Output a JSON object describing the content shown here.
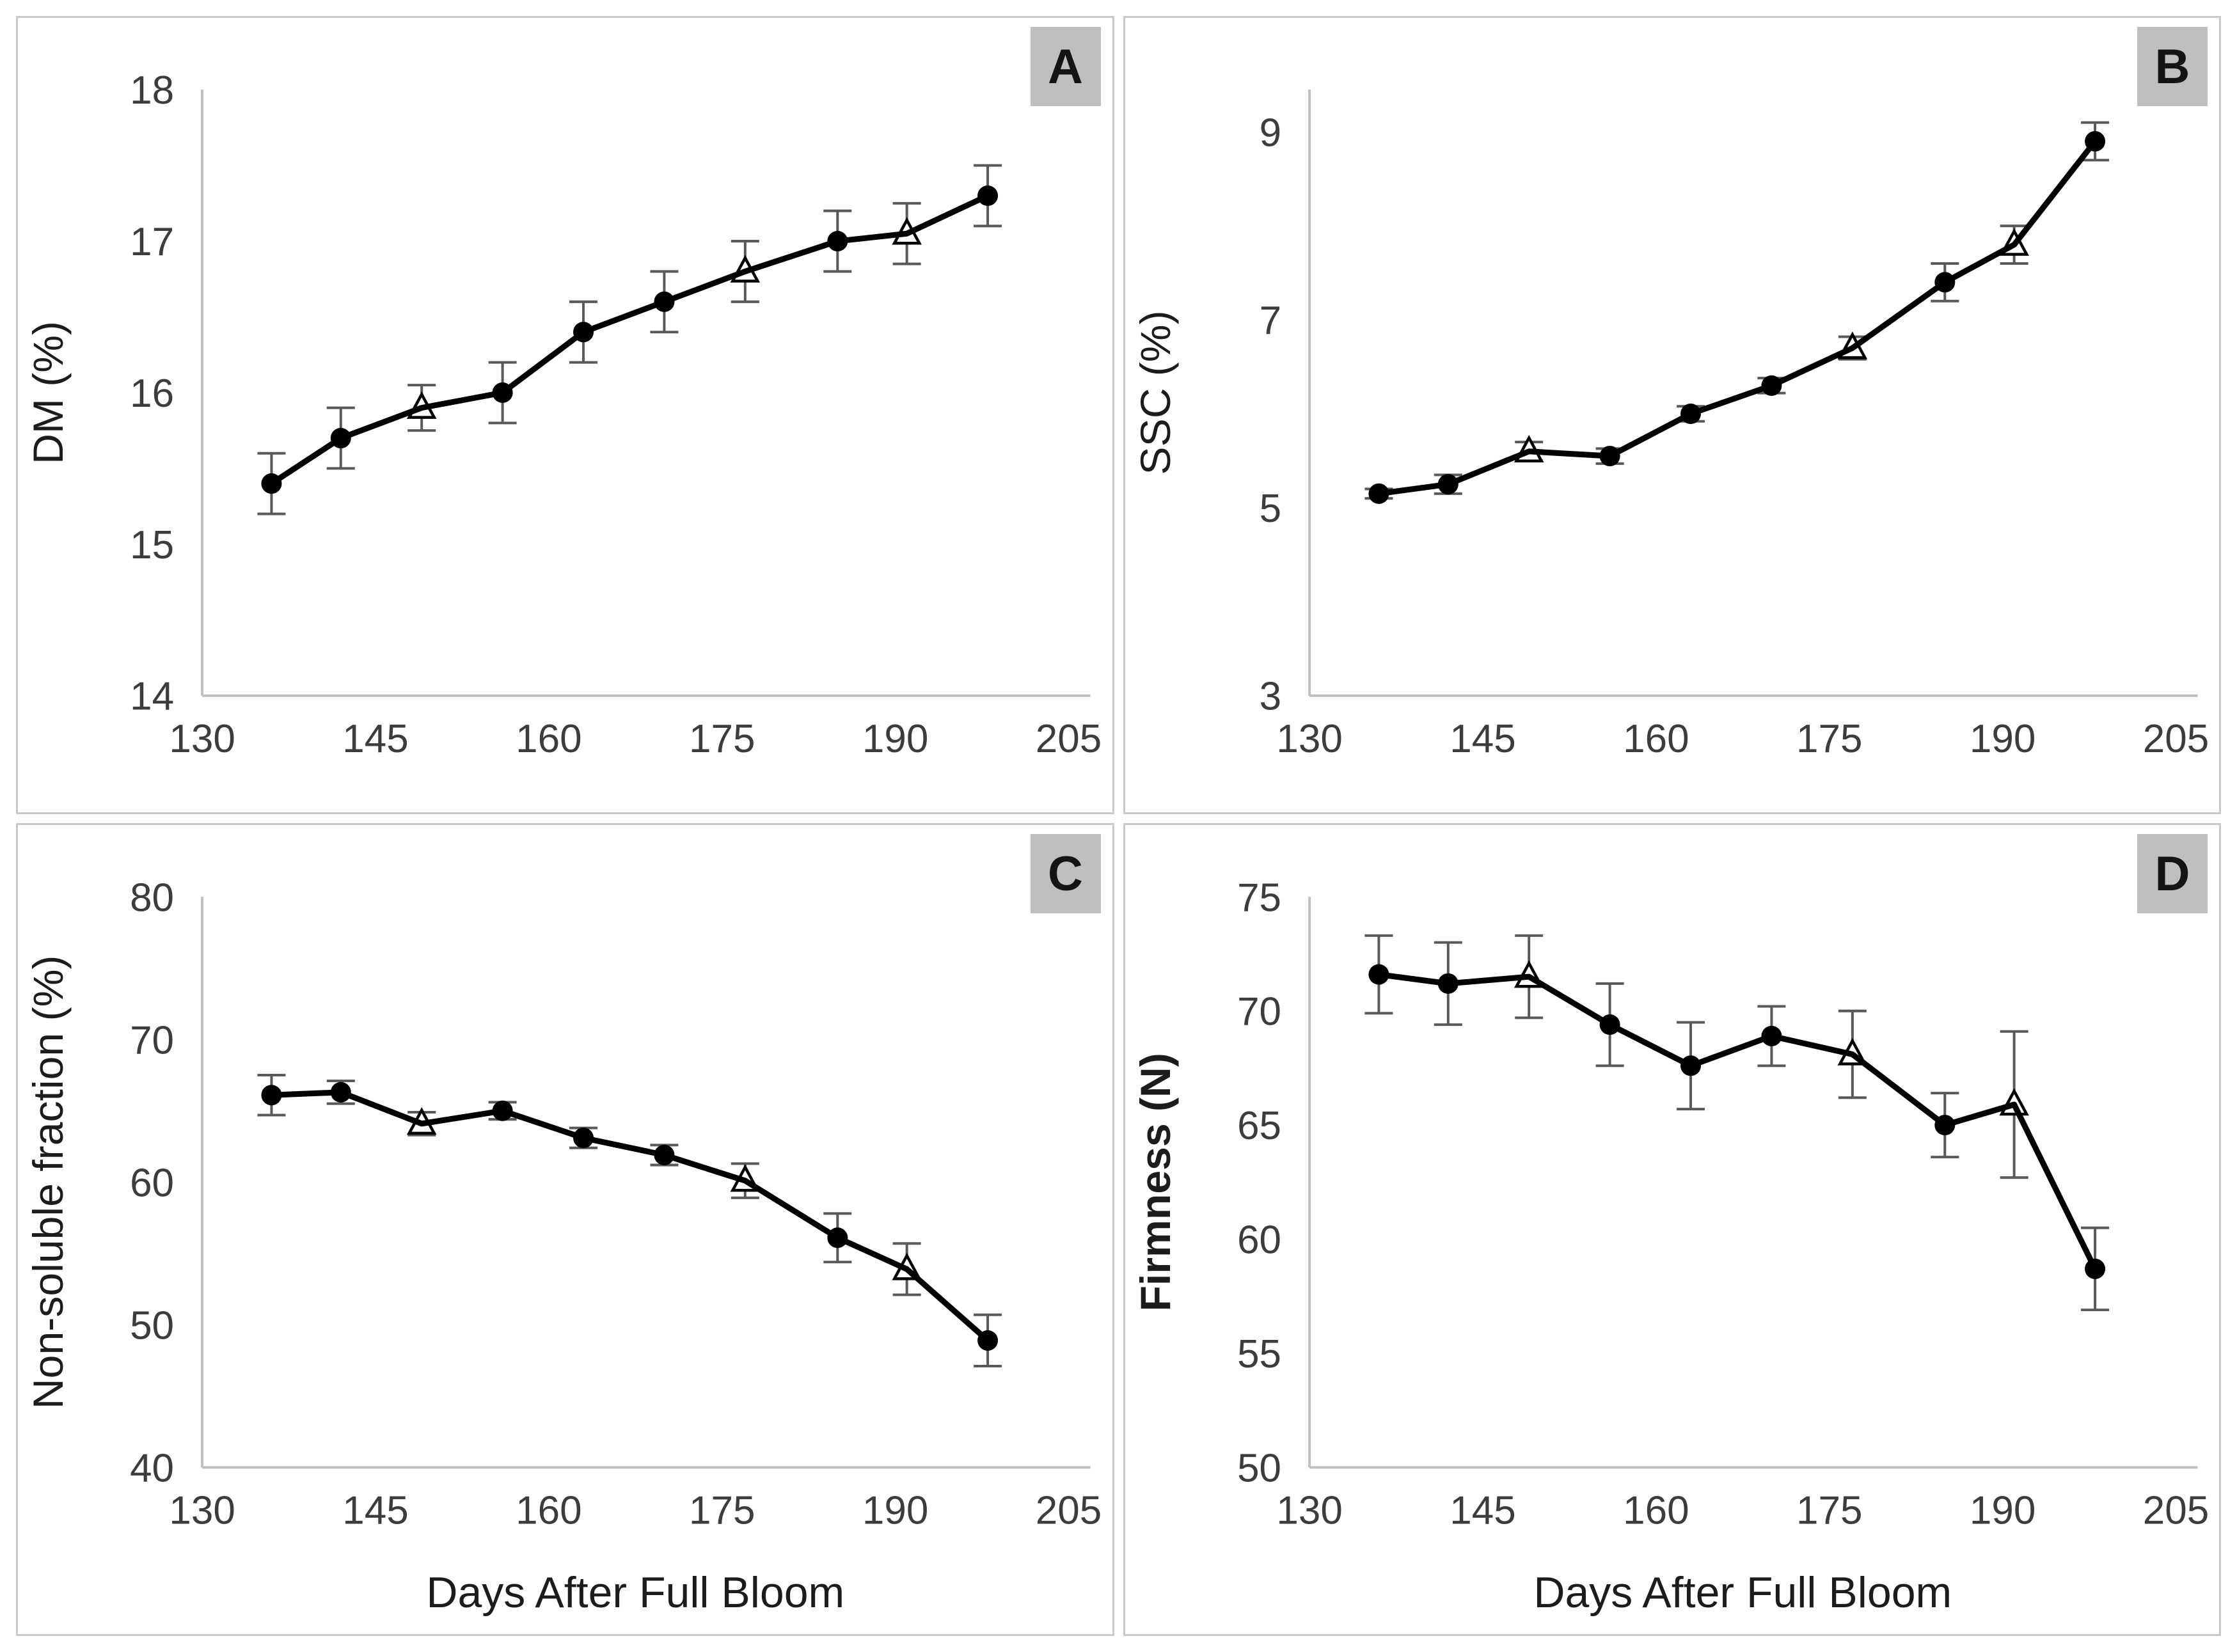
{
  "figure": {
    "xlabel": "Days After Full Bloom",
    "x_range": [
      130,
      205
    ],
    "x_ticks": [
      130,
      145,
      160,
      175,
      190,
      205
    ],
    "grid": false,
    "legend_position": "none",
    "marker_semantics": {
      "circle": "filled-circle-marker",
      "triangle": "open-triangle-marker"
    },
    "colors": {
      "line": "#000000",
      "marker_fill": "#000000",
      "triangle_fill": "#ffffff",
      "error_bar": "#595959",
      "axis_line": "#bfbfbf",
      "tick_text": "#3c3c3c",
      "title_text": "#1c1c1c",
      "panel_border": "#c9c9c9",
      "label_box_bg": "#bfbfbf",
      "label_text": "#141414"
    }
  },
  "chart_data": [
    {
      "type": "line",
      "panel_label": "A",
      "ylabel": "DM (%)",
      "ylabel_bold": false,
      "xlabel": "",
      "ylim": [
        14,
        18
      ],
      "ylim_draw": [
        14,
        18
      ],
      "y_ticks": [
        14,
        15,
        16,
        17,
        18
      ],
      "x": [
        136,
        142,
        149,
        156,
        163,
        170,
        177,
        185,
        191,
        198
      ],
      "series": [
        {
          "name": "DM",
          "values": [
            15.4,
            15.7,
            15.9,
            16.0,
            16.4,
            16.6,
            16.8,
            17.0,
            17.05,
            17.3
          ],
          "errors": [
            0.2,
            0.2,
            0.15,
            0.2,
            0.2,
            0.2,
            0.2,
            0.2,
            0.2,
            0.2
          ],
          "markers": [
            "circle",
            "circle",
            "triangle",
            "circle",
            "circle",
            "circle",
            "triangle",
            "circle",
            "triangle",
            "circle"
          ]
        }
      ]
    },
    {
      "type": "line",
      "panel_label": "B",
      "ylabel": "SSC (%)",
      "ylabel_bold": false,
      "xlabel": "",
      "ylim": [
        3,
        9
      ],
      "ylim_draw": [
        3,
        9.45
      ],
      "y_ticks": [
        3,
        5,
        7,
        9
      ],
      "x": [
        136,
        142,
        149,
        156,
        163,
        170,
        177,
        185,
        191,
        198
      ],
      "series": [
        {
          "name": "SSC",
          "values": [
            5.15,
            5.25,
            5.6,
            5.55,
            6.0,
            6.3,
            6.7,
            7.4,
            7.8,
            8.9
          ],
          "errors": [
            0.05,
            0.1,
            0.1,
            0.08,
            0.08,
            0.08,
            0.12,
            0.2,
            0.2,
            0.2
          ],
          "markers": [
            "circle",
            "circle",
            "triangle",
            "circle",
            "circle",
            "circle",
            "triangle",
            "circle",
            "triangle",
            "circle"
          ]
        }
      ]
    },
    {
      "type": "line",
      "panel_label": "C",
      "ylabel": "Non-soluble fraction (%)",
      "ylabel_bold": false,
      "xlabel": "Days After Full Bloom",
      "ylim": [
        40,
        80
      ],
      "ylim_draw": [
        40,
        80
      ],
      "y_ticks": [
        40,
        50,
        60,
        70,
        80
      ],
      "x": [
        136,
        142,
        149,
        156,
        163,
        170,
        177,
        185,
        191,
        198
      ],
      "series": [
        {
          "name": "Non-soluble fraction",
          "values": [
            66.1,
            66.3,
            64.1,
            65.0,
            63.1,
            61.9,
            60.1,
            56.1,
            53.9,
            48.9
          ],
          "errors": [
            1.4,
            0.8,
            0.8,
            0.6,
            0.7,
            0.7,
            1.2,
            1.7,
            1.8,
            1.8
          ],
          "markers": [
            "circle",
            "circle",
            "triangle",
            "circle",
            "circle",
            "circle",
            "triangle",
            "circle",
            "triangle",
            "circle"
          ]
        }
      ]
    },
    {
      "type": "line",
      "panel_label": "D",
      "ylabel": "Firmness (N)",
      "ylabel_bold": true,
      "xlabel": "Days After Full Bloom",
      "ylim": [
        50,
        75
      ],
      "ylim_draw": [
        50,
        75
      ],
      "y_ticks": [
        50,
        55,
        60,
        65,
        70,
        75
      ],
      "x": [
        136,
        142,
        149,
        156,
        163,
        170,
        177,
        185,
        191,
        198
      ],
      "series": [
        {
          "name": "Firmness",
          "values": [
            71.6,
            71.2,
            71.5,
            69.4,
            67.6,
            68.9,
            68.1,
            65.0,
            65.9,
            58.7
          ],
          "errors": [
            1.7,
            1.8,
            1.8,
            1.8,
            1.9,
            1.3,
            1.9,
            1.4,
            3.2,
            1.8
          ],
          "markers": [
            "circle",
            "circle",
            "triangle",
            "circle",
            "circle",
            "circle",
            "triangle",
            "circle",
            "triangle",
            "circle"
          ]
        }
      ]
    }
  ]
}
